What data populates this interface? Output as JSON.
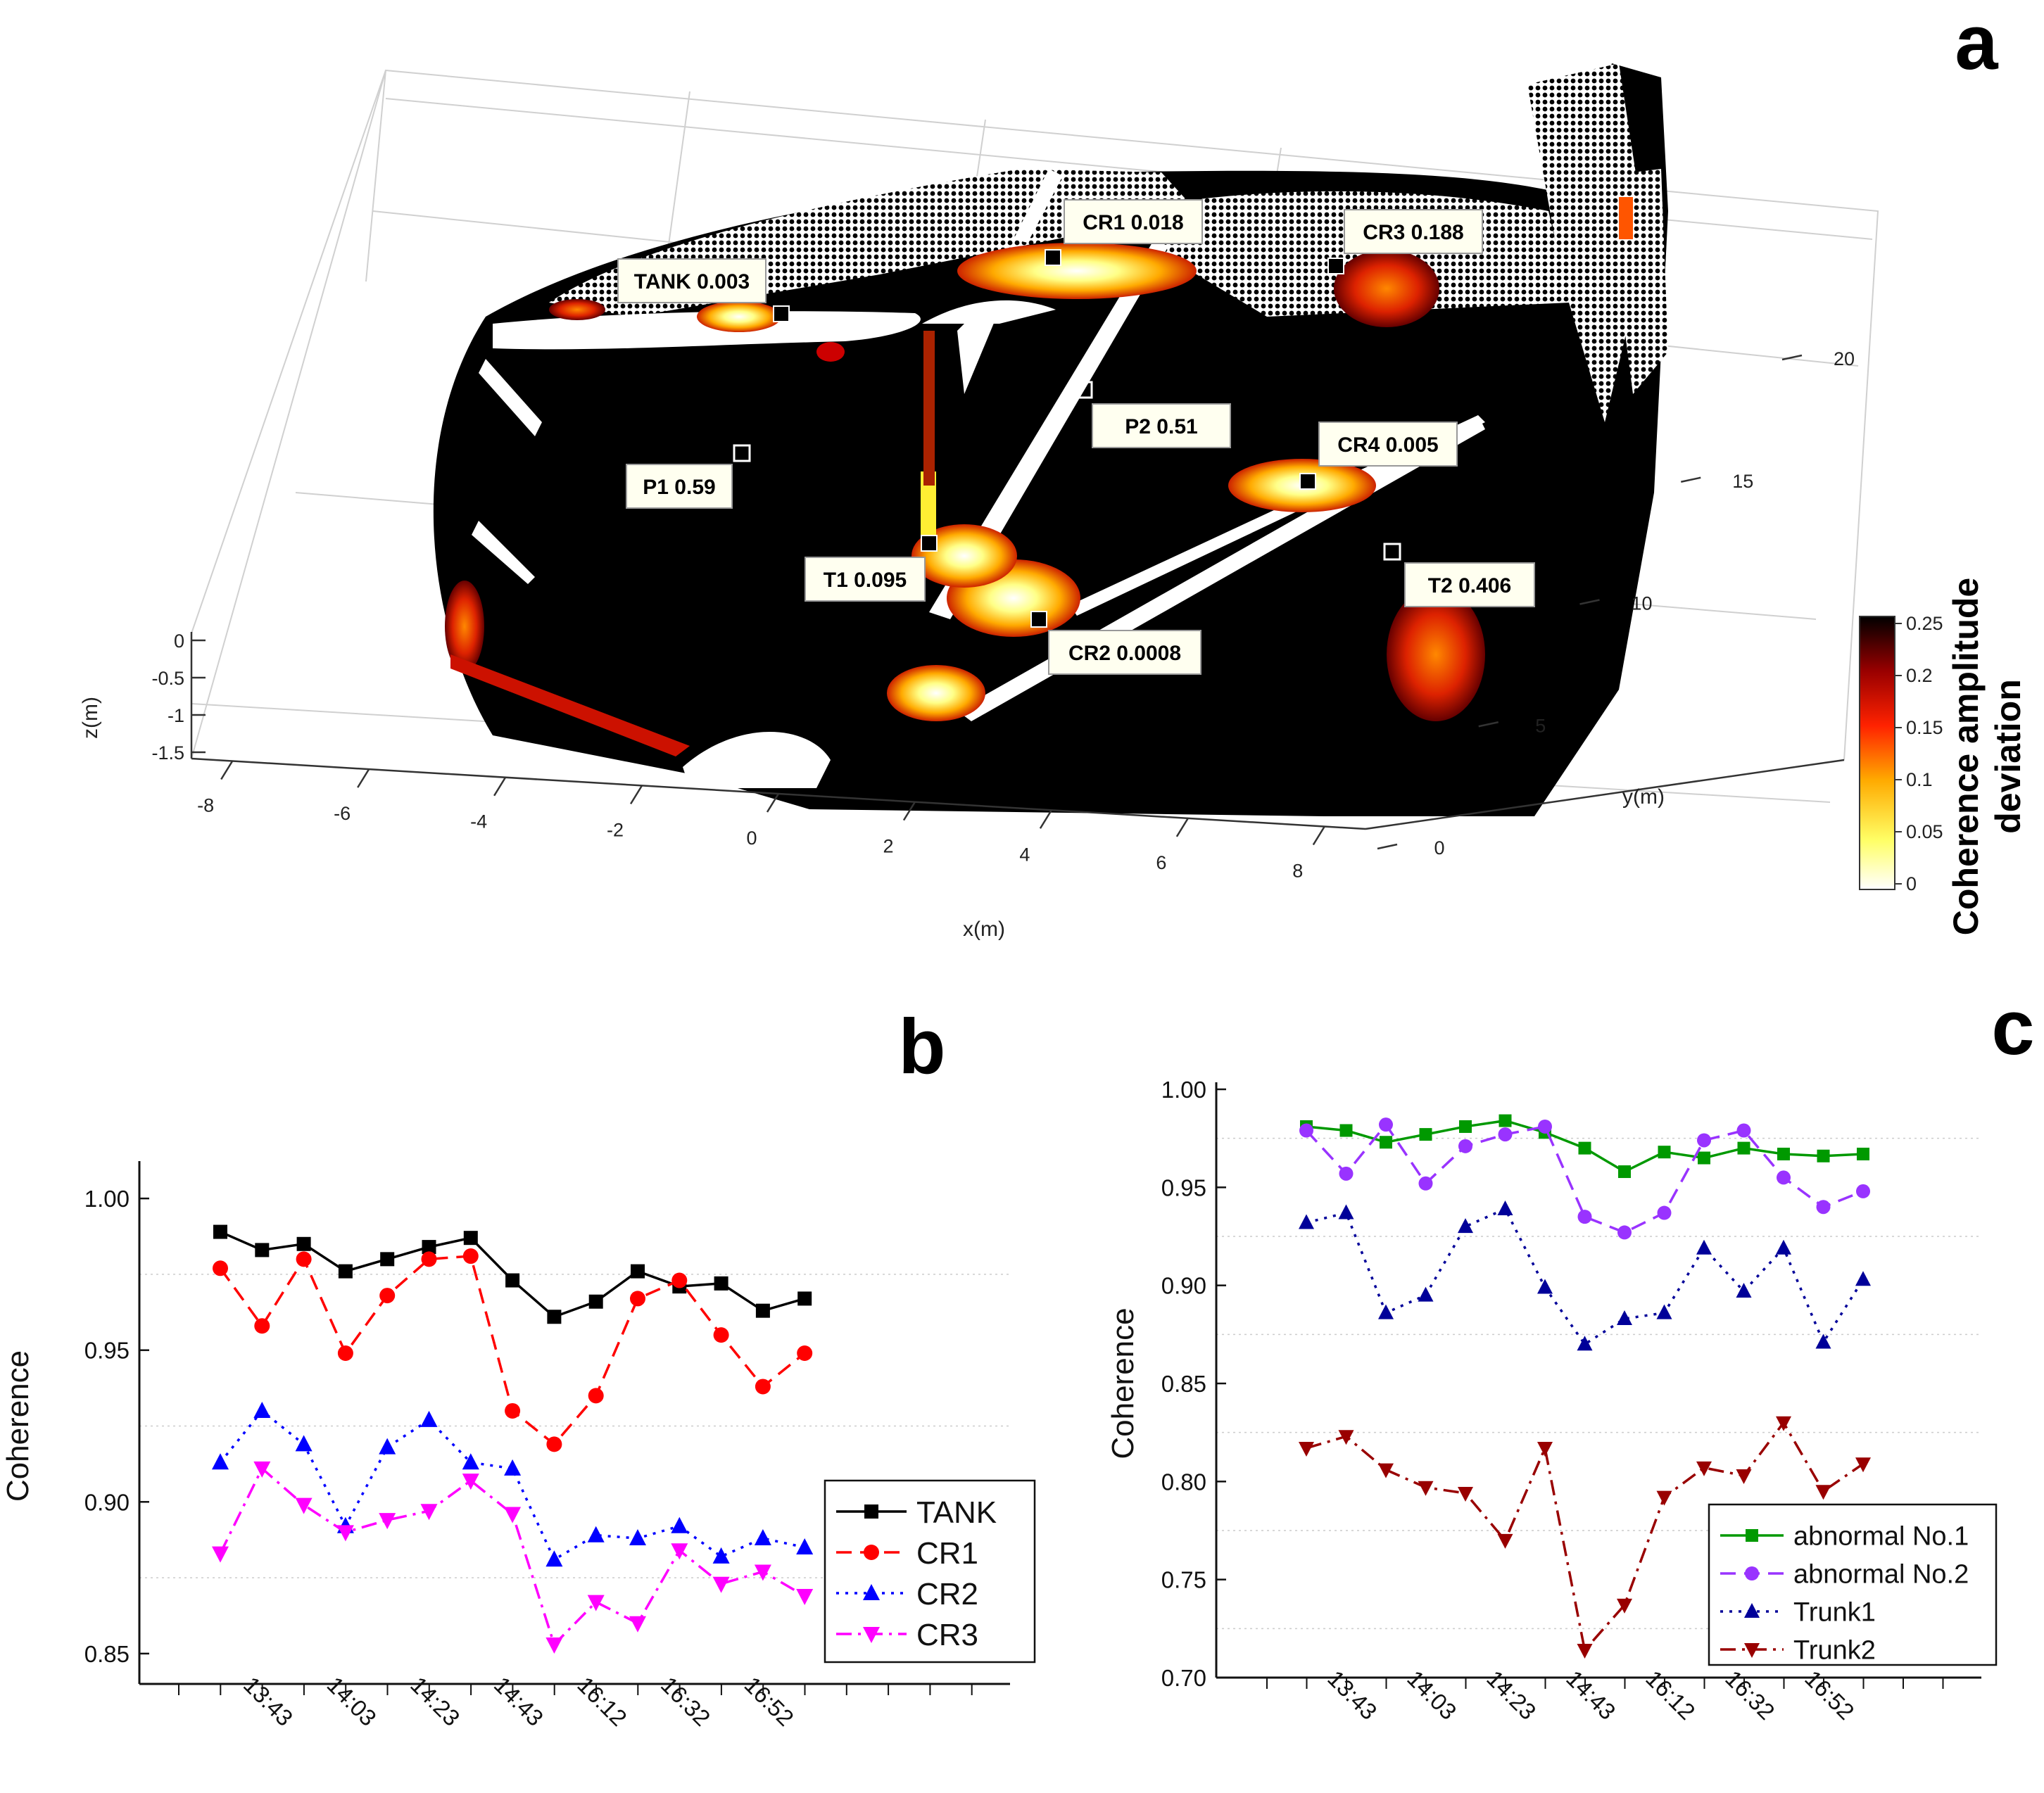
{
  "panel_a": {
    "letter": "a",
    "colorbar": {
      "title_line1": "Coherence amplitude",
      "title_line2": "deviation",
      "ticks": [
        "0.25",
        "0.2",
        "0.15",
        "0.1",
        "0.05",
        "0"
      ],
      "range": [
        0,
        0.25
      ]
    },
    "axes": {
      "x_label": "x(m)",
      "y_label": "y(m)",
      "z_label": "z(m)",
      "x_ticks": [
        "-8",
        "-6",
        "-4",
        "-2",
        "0",
        "2",
        "4",
        "6",
        "8"
      ],
      "y_ticks": [
        "0",
        "5",
        "10",
        "15",
        "20"
      ],
      "z_ticks": [
        "0",
        "-0.5",
        "-1",
        "-1.5"
      ]
    },
    "annotations": [
      {
        "name": "tank",
        "label": "TANK 0.003",
        "marker": "filled"
      },
      {
        "name": "cr1",
        "label": "CR1 0.018",
        "marker": "filled"
      },
      {
        "name": "cr3",
        "label": "CR3 0.188",
        "marker": "filled"
      },
      {
        "name": "p2",
        "label": "P2 0.51",
        "marker": "hollow"
      },
      {
        "name": "cr4",
        "label": "CR4 0.005",
        "marker": "filled"
      },
      {
        "name": "p1",
        "label": "P1 0.59",
        "marker": "hollow"
      },
      {
        "name": "t1",
        "label": "T1 0.095",
        "marker": "filled"
      },
      {
        "name": "t2",
        "label": "T2 0.406",
        "marker": "hollow"
      },
      {
        "name": "cr2",
        "label": "CR2 0.0008",
        "marker": "filled"
      }
    ]
  },
  "chart_data": [
    {
      "panel": "b",
      "type": "line",
      "letter": "b",
      "ylabel": "Coherence",
      "xlabel": "",
      "ylim": [
        0.84,
        1.01
      ],
      "yticks": [
        "0.85",
        "0.90",
        "0.95",
        "1.00"
      ],
      "ytick_values": [
        0.85,
        0.9,
        0.95,
        1.0
      ],
      "xtick_labels": [
        "13:43",
        "14:03",
        "14:23",
        "14:43",
        "16:12",
        "16:32",
        "16:52"
      ],
      "xtick_index": [
        1,
        3,
        5,
        7,
        9,
        11,
        13
      ],
      "n_points": 15,
      "legend_position": "bottom-right",
      "series": [
        {
          "name": "TANK",
          "color": "#000000",
          "dash": "solid",
          "marker": "square",
          "values": [
            0.989,
            0.983,
            0.985,
            0.976,
            0.98,
            0.984,
            0.987,
            0.973,
            0.961,
            0.966,
            0.976,
            0.971,
            0.972,
            0.963,
            0.967
          ]
        },
        {
          "name": "CR1",
          "color": "#ff0000",
          "dash": "dash",
          "marker": "circle",
          "values": [
            0.977,
            0.958,
            0.98,
            0.949,
            0.968,
            0.98,
            0.981,
            0.93,
            0.919,
            0.935,
            0.967,
            0.973,
            0.955,
            0.938,
            0.949
          ]
        },
        {
          "name": "CR2",
          "color": "#0000ff",
          "dash": "dot",
          "marker": "triangle-up",
          "values": [
            0.913,
            0.93,
            0.919,
            0.892,
            0.918,
            0.927,
            0.913,
            0.911,
            0.881,
            0.889,
            0.888,
            0.892,
            0.882,
            0.888,
            0.885
          ]
        },
        {
          "name": "CR3",
          "color": "#ff00ff",
          "dash": "dashdot",
          "marker": "triangle-down",
          "values": [
            0.883,
            0.911,
            0.899,
            0.89,
            0.894,
            0.897,
            0.907,
            0.896,
            0.853,
            0.867,
            0.86,
            0.884,
            0.873,
            0.877,
            0.869
          ]
        }
      ]
    },
    {
      "panel": "c",
      "type": "line",
      "letter": "c",
      "ylabel": "Coherence",
      "xlabel": "",
      "ylim": [
        0.7,
        1.0
      ],
      "yticks": [
        "0.70",
        "0.75",
        "0.80",
        "0.85",
        "0.90",
        "0.95",
        "1.00"
      ],
      "ytick_values": [
        0.7,
        0.75,
        0.8,
        0.85,
        0.9,
        0.95,
        1.0
      ],
      "xtick_labels": [
        "13:43",
        "14:03",
        "14:23",
        "14:43",
        "16:12",
        "16:32",
        "16:52"
      ],
      "xtick_index": [
        1,
        3,
        5,
        7,
        9,
        11,
        13
      ],
      "n_points": 15,
      "legend_position": "bottom-right",
      "series": [
        {
          "name": "abnormal No.1",
          "color": "#009900",
          "dash": "solid",
          "marker": "square",
          "values": [
            0.981,
            0.979,
            0.973,
            0.977,
            0.981,
            0.984,
            0.978,
            0.97,
            0.958,
            0.968,
            0.965,
            0.97,
            0.967,
            0.966,
            0.967
          ]
        },
        {
          "name": "abnormal No.2",
          "color": "#9933ff",
          "dash": "dash",
          "marker": "circle",
          "values": [
            0.979,
            0.957,
            0.982,
            0.952,
            0.971,
            0.977,
            0.981,
            0.935,
            0.927,
            0.937,
            0.974,
            0.979,
            0.955,
            0.94,
            0.948
          ]
        },
        {
          "name": "Trunk1",
          "color": "#000099",
          "dash": "dot",
          "marker": "triangle-up",
          "values": [
            0.932,
            0.937,
            0.886,
            0.895,
            0.93,
            0.939,
            0.899,
            0.87,
            0.883,
            0.886,
            0.919,
            0.897,
            0.919,
            0.871,
            0.903
          ]
        },
        {
          "name": "Trunk2",
          "color": "#990000",
          "dash": "dashdot",
          "marker": "triangle-down",
          "values": [
            0.817,
            0.823,
            0.806,
            0.797,
            0.794,
            0.77,
            0.817,
            0.714,
            0.737,
            0.792,
            0.807,
            0.803,
            0.83,
            0.795,
            0.809
          ]
        }
      ]
    }
  ]
}
